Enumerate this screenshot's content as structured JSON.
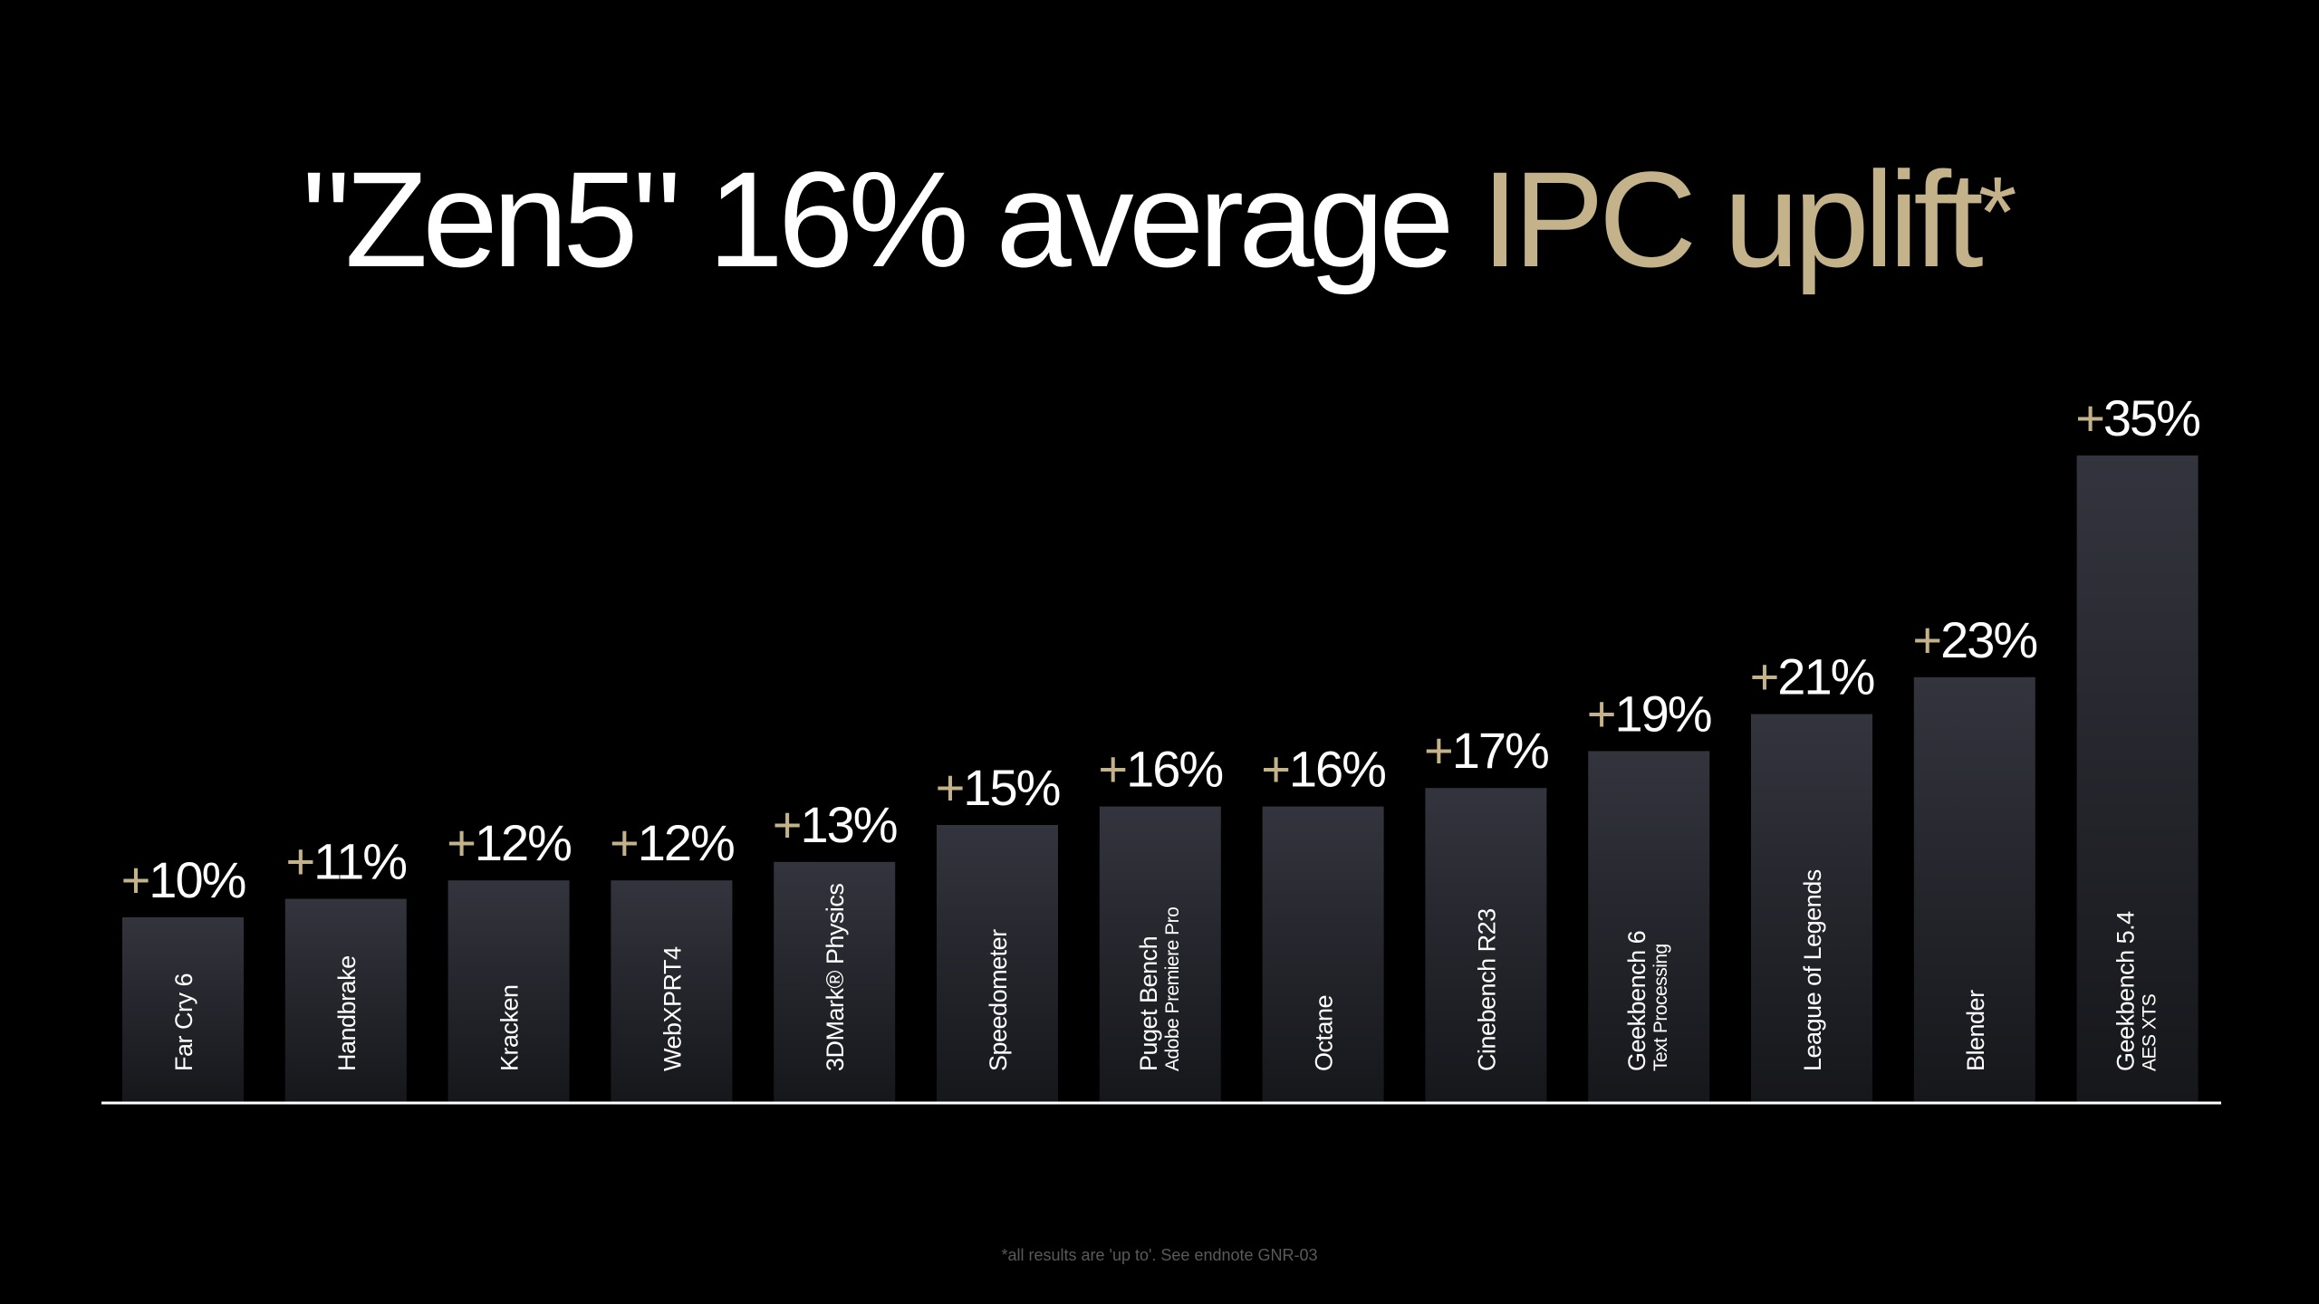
{
  "title": {
    "part1": "\"Zen5\" 16% average ",
    "part2": "IPC uplift",
    "mark": "*"
  },
  "footnote": "*all results are 'up to'. See endnote GNR-03",
  "colors": {
    "background": "#000000",
    "accent": "#c3b28a",
    "bar_top": "#33343d",
    "bar_bottom": "#16171b",
    "baseline": "#ffffff",
    "text": "#ffffff"
  },
  "chart_data": {
    "type": "bar",
    "title": "\"Zen5\" 16% average IPC uplift*",
    "xlabel": "",
    "ylabel": "",
    "ylim": [
      0,
      35
    ],
    "grid": false,
    "value_prefix": "+",
    "value_suffix": "%",
    "categories": [
      [
        "Far Cry 6"
      ],
      [
        "Handbrake"
      ],
      [
        "Kracken"
      ],
      [
        "WebXPRT4"
      ],
      [
        "3DMark® Physics"
      ],
      [
        "Speedometer"
      ],
      [
        "Puget Bench",
        "Adobe Premiere Pro"
      ],
      [
        "Octane"
      ],
      [
        "Cinebench R23"
      ],
      [
        "Geekbench 6",
        "Text Processing"
      ],
      [
        "League of Legends"
      ],
      [
        "Blender"
      ],
      [
        "Geekbench 5.4",
        "AES XTS"
      ]
    ],
    "values": [
      10,
      11,
      12,
      12,
      13,
      15,
      16,
      16,
      17,
      19,
      21,
      23,
      35
    ]
  }
}
